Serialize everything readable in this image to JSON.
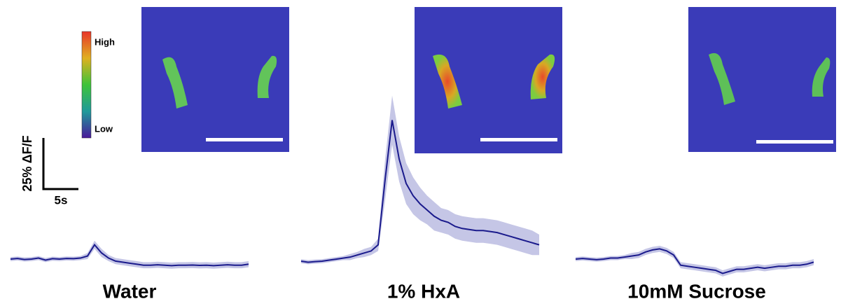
{
  "chart_data": [
    {
      "type": "line",
      "title": "Water",
      "color": "#1a1a8c",
      "band_color": "#c5c6e6",
      "x": [
        0,
        1,
        2,
        3,
        4,
        5,
        6,
        7,
        8,
        9,
        10,
        11,
        12,
        13,
        14,
        15,
        16,
        17,
        18,
        19,
        20,
        21,
        22,
        23,
        24,
        25,
        26,
        27,
        28,
        29,
        30,
        31,
        32,
        33,
        34
      ],
      "values": [
        0,
        0.3,
        -0.2,
        0,
        0.5,
        -0.5,
        0.2,
        0,
        0.3,
        0.2,
        0.5,
        1.5,
        7,
        3,
        0.5,
        -1,
        -1.5,
        -2,
        -2.5,
        -3,
        -3,
        -2.8,
        -3,
        -3.2,
        -3,
        -3,
        -2.9,
        -3.1,
        -3,
        -3.2,
        -3,
        -2.8,
        -3,
        -3,
        -2.5
      ],
      "errors": [
        1,
        1,
        1,
        1,
        1,
        1,
        1,
        1,
        1,
        1,
        1,
        1.5,
        2,
        2,
        1.5,
        1.5,
        1.5,
        1.5,
        1.5,
        1.5,
        1.5,
        1.5,
        1.5,
        1.5,
        1.5,
        1.5,
        1.5,
        1.5,
        1.5,
        1.5,
        1.5,
        1.5,
        1.5,
        1.5,
        1.5
      ]
    },
    {
      "type": "line",
      "title": "1% HxA",
      "color": "#1a1a8c",
      "band_color": "#c5c6e6",
      "x": [
        0,
        1,
        2,
        3,
        4,
        5,
        6,
        7,
        8,
        9,
        10,
        11,
        12,
        13,
        14,
        15,
        16,
        17,
        18,
        19,
        20,
        21,
        22,
        23,
        24,
        25,
        26,
        27,
        28,
        29,
        30,
        31,
        32,
        33,
        34
      ],
      "values": [
        0,
        -0.5,
        -0.2,
        0,
        0.5,
        1,
        1.5,
        2,
        3,
        4,
        5,
        8,
        40,
        69,
        50,
        38,
        32,
        28,
        25,
        22,
        20,
        19,
        17,
        16,
        15.5,
        15,
        15,
        14.5,
        14,
        13,
        12,
        11,
        10,
        9,
        8
      ],
      "errors": [
        1,
        1,
        1,
        1,
        1,
        1,
        1,
        1.5,
        1.5,
        2,
        2,
        3,
        10,
        12,
        11,
        10,
        9,
        8,
        7,
        7,
        6,
        6,
        6,
        6,
        6,
        6,
        6,
        6,
        6,
        6,
        6,
        6,
        6,
        6,
        5
      ]
    },
    {
      "type": "line",
      "title": "10mM Sucrose",
      "color": "#1a1a8c",
      "band_color": "#c5c6e6",
      "x": [
        0,
        1,
        2,
        3,
        4,
        5,
        6,
        7,
        8,
        9,
        10,
        11,
        12,
        13,
        14,
        15,
        16,
        17,
        18,
        19,
        20,
        21,
        22,
        23,
        24,
        25,
        26,
        27,
        28,
        29,
        30,
        31,
        32,
        33,
        34
      ],
      "values": [
        0,
        0.3,
        0,
        -0.3,
        0,
        0.5,
        0.5,
        1,
        1.5,
        2,
        3.5,
        4.5,
        5,
        4,
        2,
        -3,
        -3.5,
        -4,
        -4.5,
        -5,
        -5.5,
        -7,
        -6,
        -5,
        -5,
        -4.5,
        -4,
        -4.5,
        -4,
        -3.5,
        -3.5,
        -3,
        -3,
        -2.5,
        -1.5
      ],
      "errors": [
        1,
        1,
        1,
        1,
        1,
        1,
        1,
        1,
        1.5,
        1.5,
        1.5,
        1.5,
        1.5,
        1.5,
        1.5,
        1.5,
        1.5,
        1.5,
        1.5,
        1.5,
        1.5,
        1.5,
        1.5,
        1.5,
        1.5,
        1.5,
        1.5,
        1.5,
        1.5,
        1.5,
        1.5,
        1.5,
        1.5,
        1.5,
        1.5
      ]
    }
  ],
  "scale_bar": {
    "y": {
      "value": 25,
      "label": "25% ΔF/F"
    },
    "x": {
      "value": 5,
      "label": "5s"
    }
  },
  "colorbar": {
    "high": "High",
    "low": "Low"
  }
}
